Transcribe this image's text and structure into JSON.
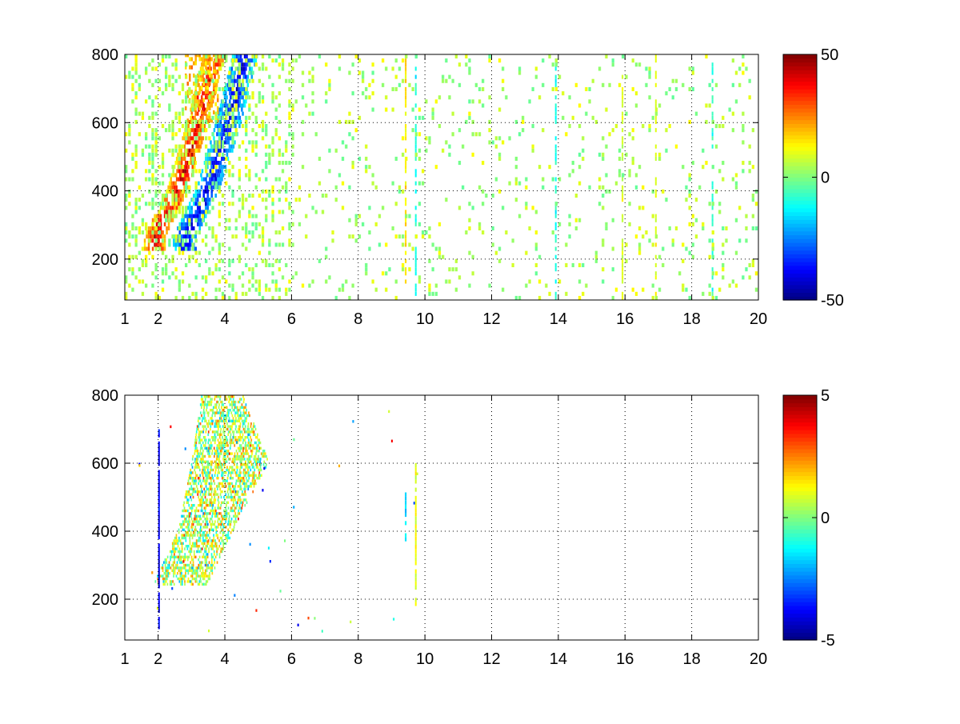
{
  "chart_data": [
    {
      "type": "heatmap",
      "title": "",
      "xlabel": "",
      "ylabel": "",
      "xlim": [
        1,
        20
      ],
      "ylim": [
        80,
        800
      ],
      "x_scale": "linear",
      "grid": true,
      "grid_style": "dotted",
      "x_ticks": [
        1,
        2,
        4,
        6,
        8,
        10,
        12,
        14,
        16,
        18,
        20
      ],
      "y_ticks": [
        200,
        400,
        600,
        800
      ],
      "colormap": "jet",
      "colorbar": {
        "min": -50,
        "max": 50,
        "ticks": [
          -50,
          0,
          50
        ]
      },
      "features": [
        {
          "shape": "band",
          "value": 40,
          "x_center_at_y": [
            [
              1.9,
              260
            ],
            [
              2.6,
              400
            ],
            [
              3.2,
              600
            ],
            [
              3.7,
              800
            ]
          ],
          "width": 0.55
        },
        {
          "shape": "band",
          "value": -40,
          "x_center_at_y": [
            [
              2.8,
              260
            ],
            [
              3.5,
              400
            ],
            [
              4.1,
              600
            ],
            [
              4.6,
              800
            ]
          ],
          "width": 0.6
        },
        {
          "shape": "patch",
          "value": 20,
          "x_range": [
            2.8,
            3.8
          ],
          "y_range": [
            600,
            800
          ]
        },
        {
          "shape": "column",
          "x": 9.4,
          "value": 15
        },
        {
          "shape": "column",
          "x": 9.7,
          "value": -10
        },
        {
          "shape": "column",
          "x": 13.9,
          "value": -10
        },
        {
          "shape": "column",
          "x": 15.9,
          "value": 8
        },
        {
          "shape": "column",
          "x": 16.9,
          "value": 10
        },
        {
          "shape": "column",
          "x": 18.6,
          "value": -8
        }
      ],
      "background": "sparse scattered cells of value about -10 to +15 over the whole panel"
    },
    {
      "type": "heatmap",
      "title": "",
      "xlabel": "",
      "ylabel": "",
      "xlim": [
        1,
        20
      ],
      "ylim": [
        80,
        800
      ],
      "x_scale": "linear",
      "grid": true,
      "grid_style": "dotted",
      "x_ticks": [
        1,
        2,
        4,
        6,
        8,
        10,
        12,
        14,
        16,
        18,
        20
      ],
      "y_ticks": [
        200,
        400,
        600,
        800
      ],
      "colormap": "jet",
      "colorbar": {
        "min": -5,
        "max": 5,
        "ticks": [
          -5,
          0,
          5
        ]
      },
      "features": [
        {
          "shape": "region",
          "value": 0.5,
          "spread": 2,
          "x_left_at_y": [
            [
              1.9,
              250
            ],
            [
              2.6,
              400
            ],
            [
              3.0,
              600
            ],
            [
              3.3,
              800
            ]
          ],
          "x_right_at_y": [
            [
              3.5,
              250
            ],
            [
              4.5,
              450
            ],
            [
              5.3,
              600
            ],
            [
              4.5,
              800
            ]
          ]
        },
        {
          "shape": "column",
          "x": 2.0,
          "y_range": [
            100,
            700
          ],
          "value": -4
        },
        {
          "shape": "column",
          "x": 9.7,
          "y_range": [
            180,
            600
          ],
          "value": 1
        },
        {
          "shape": "column",
          "x": 9.4,
          "y_range": [
            370,
            520
          ],
          "value": -1.5
        }
      ],
      "background": "empty except isolated cells"
    }
  ]
}
